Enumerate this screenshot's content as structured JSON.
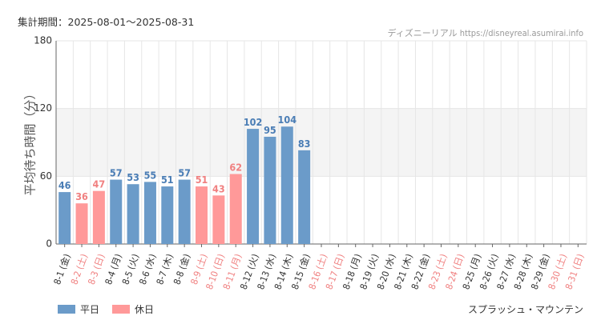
{
  "header": {
    "period_label": "集計期間：2025-08-01～2025-08-31",
    "source": "ディズニーリアル https://disneyreal.asumirai.info"
  },
  "footer": {
    "attraction": "スプラッシュ・マウンテン"
  },
  "colors": {
    "weekday": "#6b9bc9",
    "holiday": "#ff9999",
    "weekday_text": "#4a7db5",
    "holiday_text": "#f08080",
    "band": "#f4f4f4",
    "grid": "#e6e6e6"
  },
  "chart_data": {
    "type": "bar",
    "title": "",
    "xlabel": "",
    "ylabel": "平均待ち時間（分）",
    "ylim": [
      0,
      180
    ],
    "yticks": [
      0,
      60,
      120,
      180
    ],
    "band": [
      60,
      120
    ],
    "grid": true,
    "legend_position": "bottom-left",
    "legend": [
      {
        "name": "平日",
        "kind": "weekday"
      },
      {
        "name": "休日",
        "kind": "holiday"
      }
    ],
    "categories": [
      "8-1 (金)",
      "8-2 (土)",
      "8-3 (日)",
      "8-4 (月)",
      "8-5 (火)",
      "8-6 (水)",
      "8-7 (木)",
      "8-8 (金)",
      "8-9 (土)",
      "8-10 (日)",
      "8-11 (月)",
      "8-12 (火)",
      "8-13 (水)",
      "8-14 (木)",
      "8-15 (金)",
      "8-16 (土)",
      "8-17 (日)",
      "8-18 (月)",
      "8-19 (火)",
      "8-20 (水)",
      "8-21 (木)",
      "8-22 (金)",
      "8-23 (土)",
      "8-24 (日)",
      "8-25 (月)",
      "8-26 (火)",
      "8-27 (水)",
      "8-28 (木)",
      "8-29 (金)",
      "8-30 (土)",
      "8-31 (日)"
    ],
    "kinds": [
      "weekday",
      "holiday",
      "holiday",
      "weekday",
      "weekday",
      "weekday",
      "weekday",
      "weekday",
      "holiday",
      "holiday",
      "holiday",
      "weekday",
      "weekday",
      "weekday",
      "weekday",
      "holiday",
      "holiday",
      "weekday",
      "weekday",
      "weekday",
      "weekday",
      "weekday",
      "holiday",
      "holiday",
      "weekday",
      "weekday",
      "weekday",
      "weekday",
      "weekday",
      "holiday",
      "holiday"
    ],
    "values": [
      46,
      36,
      47,
      57,
      53,
      55,
      51,
      57,
      51,
      43,
      62,
      102,
      95,
      104,
      83,
      null,
      null,
      null,
      null,
      null,
      null,
      null,
      null,
      null,
      null,
      null,
      null,
      null,
      null,
      null,
      null
    ]
  }
}
